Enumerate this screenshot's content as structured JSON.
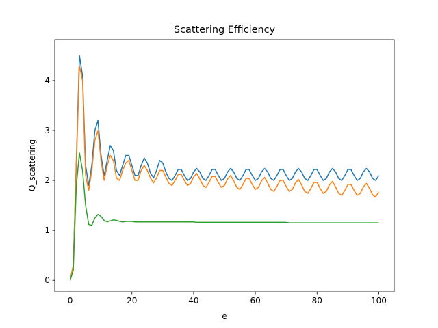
{
  "chart_data": {
    "type": "line",
    "title": "Scattering Efficiency",
    "xlabel": "e",
    "ylabel": "Q_scattering",
    "x": [
      0,
      1,
      2,
      3,
      4,
      5,
      6,
      7,
      8,
      9,
      10,
      11,
      12,
      13,
      14,
      15,
      16,
      17,
      18,
      19,
      20,
      21,
      22,
      23,
      24,
      25,
      26,
      27,
      28,
      29,
      30,
      31,
      32,
      33,
      34,
      35,
      36,
      37,
      38,
      39,
      40,
      41,
      42,
      43,
      44,
      45,
      46,
      47,
      48,
      49,
      50,
      51,
      52,
      53,
      54,
      55,
      56,
      57,
      58,
      59,
      60,
      61,
      62,
      63,
      64,
      65,
      66,
      67,
      68,
      69,
      70,
      71,
      72,
      73,
      74,
      75,
      76,
      77,
      78,
      79,
      80,
      81,
      82,
      83,
      84,
      85,
      86,
      87,
      88,
      89,
      90,
      91,
      92,
      93,
      94,
      95,
      96,
      97,
      98,
      99,
      100
    ],
    "series": [
      {
        "color": "#1f77b4",
        "values": [
          0,
          0.3,
          2.4,
          4.5,
          4.1,
          2.3,
          1.9,
          2.3,
          3.0,
          3.2,
          2.5,
          2.1,
          2.4,
          2.7,
          2.6,
          2.2,
          2.1,
          2.3,
          2.5,
          2.5,
          2.3,
          2.1,
          2.1,
          2.3,
          2.45,
          2.35,
          2.15,
          2.05,
          2.2,
          2.4,
          2.35,
          2.17,
          2.04,
          2.0,
          2.1,
          2.22,
          2.22,
          2.1,
          2.0,
          2.04,
          2.17,
          2.24,
          2.17,
          2.04,
          2.0,
          2.1,
          2.22,
          2.22,
          2.1,
          2.0,
          2.04,
          2.17,
          2.24,
          2.17,
          2.04,
          2.0,
          2.1,
          2.22,
          2.22,
          2.1,
          2.0,
          2.04,
          2.17,
          2.24,
          2.17,
          2.04,
          2.0,
          2.1,
          2.22,
          2.22,
          2.1,
          2.0,
          2.04,
          2.17,
          2.24,
          2.17,
          2.04,
          2.0,
          2.1,
          2.22,
          2.22,
          2.1,
          2.0,
          2.04,
          2.17,
          2.24,
          2.17,
          2.04,
          2.0,
          2.1,
          2.22,
          2.22,
          2.1,
          2.0,
          2.04,
          2.17,
          2.24,
          2.17,
          2.04,
          2.0,
          2.1
        ]
      },
      {
        "color": "#ff7f0e",
        "values": [
          0,
          0.3,
          2.3,
          4.3,
          4.0,
          2.1,
          1.8,
          2.2,
          2.8,
          3.0,
          2.4,
          2.0,
          2.3,
          2.5,
          2.4,
          2.05,
          2.0,
          2.2,
          2.35,
          2.4,
          2.2,
          2.0,
          2.0,
          2.2,
          2.3,
          2.2,
          2.05,
          1.95,
          2.05,
          2.2,
          2.2,
          2.07,
          1.94,
          1.9,
          2.0,
          2.12,
          2.12,
          2.0,
          1.9,
          1.94,
          2.07,
          2.14,
          2.03,
          1.9,
          1.86,
          1.96,
          2.08,
          2.08,
          1.96,
          1.86,
          1.9,
          2.03,
          2.1,
          1.99,
          1.86,
          1.82,
          1.92,
          2.04,
          2.04,
          1.92,
          1.82,
          1.86,
          1.99,
          2.06,
          1.95,
          1.82,
          1.78,
          1.88,
          2.0,
          2.0,
          1.88,
          1.78,
          1.82,
          1.95,
          2.02,
          1.91,
          1.78,
          1.74,
          1.84,
          1.96,
          1.96,
          1.84,
          1.74,
          1.78,
          1.91,
          1.98,
          1.87,
          1.74,
          1.7,
          1.8,
          1.92,
          1.92,
          1.8,
          1.7,
          1.74,
          1.87,
          1.94,
          1.84,
          1.71,
          1.67,
          1.77
        ]
      },
      {
        "color": "#2ca02c",
        "values": [
          0,
          0.2,
          1.9,
          2.55,
          2.2,
          1.5,
          1.12,
          1.1,
          1.25,
          1.32,
          1.28,
          1.2,
          1.17,
          1.19,
          1.21,
          1.2,
          1.18,
          1.17,
          1.18,
          1.18,
          1.18,
          1.17,
          1.17,
          1.17,
          1.17,
          1.17,
          1.17,
          1.17,
          1.17,
          1.17,
          1.17,
          1.17,
          1.17,
          1.17,
          1.17,
          1.17,
          1.17,
          1.17,
          1.17,
          1.17,
          1.17,
          1.16,
          1.16,
          1.16,
          1.16,
          1.16,
          1.16,
          1.16,
          1.16,
          1.16,
          1.16,
          1.16,
          1.16,
          1.16,
          1.16,
          1.16,
          1.16,
          1.16,
          1.16,
          1.16,
          1.16,
          1.16,
          1.16,
          1.16,
          1.16,
          1.16,
          1.16,
          1.16,
          1.16,
          1.16,
          1.16,
          1.15,
          1.15,
          1.15,
          1.15,
          1.15,
          1.15,
          1.15,
          1.15,
          1.15,
          1.15,
          1.15,
          1.15,
          1.15,
          1.15,
          1.15,
          1.15,
          1.15,
          1.15,
          1.15,
          1.15,
          1.15,
          1.15,
          1.15,
          1.15,
          1.15,
          1.15,
          1.15,
          1.15,
          1.15,
          1.15
        ]
      }
    ],
    "xlim": [
      -5,
      105
    ],
    "ylim": [
      -0.23,
      4.82
    ],
    "xticks": [
      0,
      20,
      40,
      60,
      80,
      100
    ],
    "yticks": [
      0,
      1,
      2,
      3,
      4
    ],
    "grid": false
  }
}
